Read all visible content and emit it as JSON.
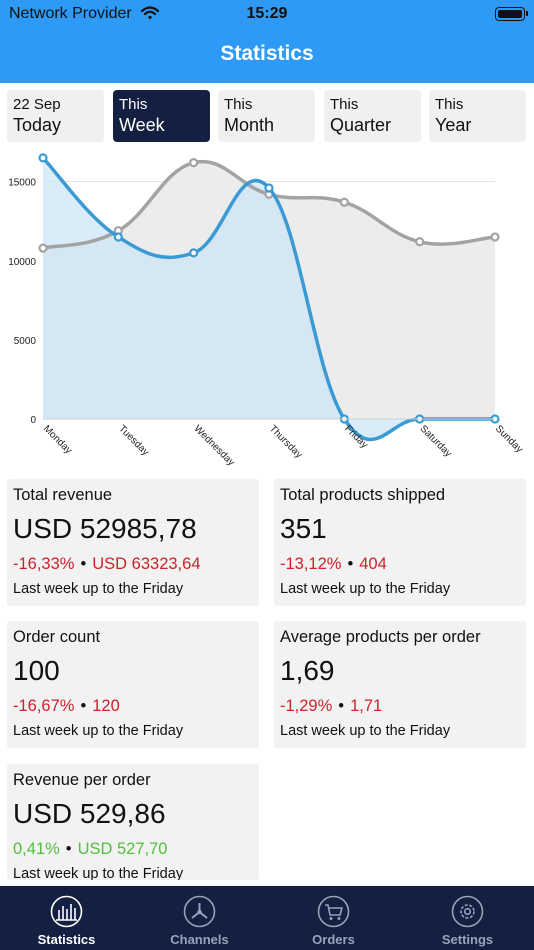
{
  "status_bar": {
    "carrier": "Network Provider",
    "time": "15:29"
  },
  "header": {
    "title": "Statistics"
  },
  "periods": [
    {
      "line1": "22 Sep",
      "line2": "Today",
      "active": false
    },
    {
      "line1": "This",
      "line2": "Week",
      "active": true
    },
    {
      "line1": "This",
      "line2": "Month",
      "active": false
    },
    {
      "line1": "This",
      "line2": "Quarter",
      "active": false
    },
    {
      "line1": "This",
      "line2": "Year",
      "active": false
    }
  ],
  "chart_data": {
    "type": "line",
    "categories": [
      "Monday",
      "Tuesday",
      "Wednesday",
      "Thursday",
      "Friday",
      "Saturday",
      "Sunday"
    ],
    "series": [
      {
        "values": [
          16500,
          11500,
          10500,
          14600,
          0,
          0,
          0
        ],
        "color": "#3a9ad4",
        "fill": "#cde6f5"
      },
      {
        "values": [
          10800,
          11900,
          16200,
          14200,
          13700,
          11200,
          11500
        ],
        "color": "#a3a3a3",
        "fill": "#ececec"
      }
    ],
    "yticks": [
      0,
      5000,
      10000,
      15000
    ],
    "ylim": [
      0,
      17000
    ],
    "grid": true
  },
  "cards": [
    {
      "label": "Total revenue",
      "value": "USD 52985,78",
      "change": "-16,33%",
      "previous": "USD 63323,64",
      "trend": "neg",
      "note": "Last week up to the Friday"
    },
    {
      "label": "Total products shipped",
      "value": "351",
      "change": "-13,12%",
      "previous": "404",
      "trend": "neg",
      "note": "Last week up to the Friday"
    },
    {
      "label": "Order count",
      "value": "100",
      "change": "-16,67%",
      "previous": "120",
      "trend": "neg",
      "note": "Last week up to the Friday"
    },
    {
      "label": "Average products per order",
      "value": "1,69",
      "change": "-1,29%",
      "previous": "1,71",
      "trend": "neg",
      "note": "Last week up to the Friday"
    },
    {
      "label": "Revenue per order",
      "value": "USD 529,86",
      "change": "0,41%",
      "previous": "USD 527,70",
      "trend": "pos",
      "note": "Last week up to the Friday"
    }
  ],
  "tabs": [
    {
      "label": "Statistics",
      "icon": "statistics-icon",
      "active": true
    },
    {
      "label": "Channels",
      "icon": "channels-icon",
      "active": false
    },
    {
      "label": "Orders",
      "icon": "orders-icon",
      "active": false
    },
    {
      "label": "Settings",
      "icon": "settings-icon",
      "active": false
    }
  ]
}
